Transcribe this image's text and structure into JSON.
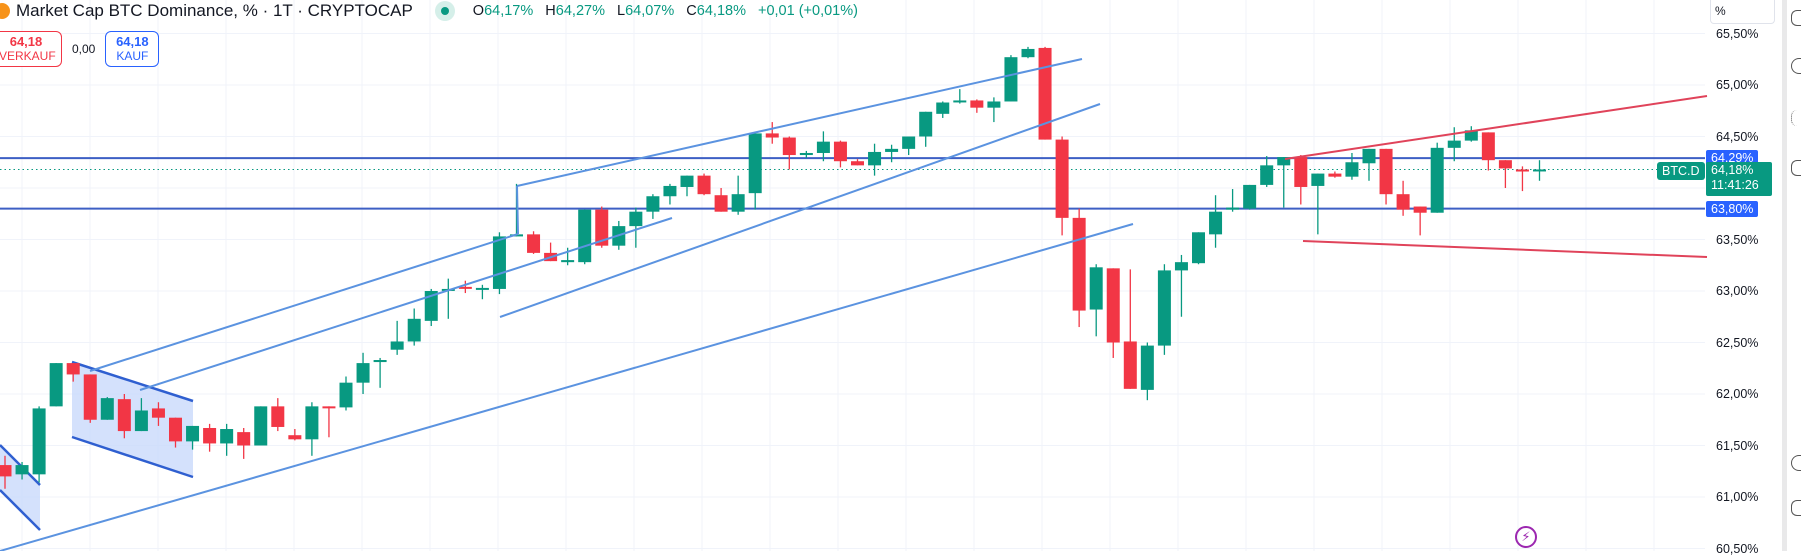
{
  "header": {
    "title": "Market Cap BTC Dominance, % · 1T · CRYPTOCAP",
    "coin_icon": "bitcoin-icon",
    "status_icon": "market-open-dot-icon",
    "ohlc": {
      "o_label": "O",
      "o": "64,17%",
      "h_label": "H",
      "h": "64,27%",
      "l_label": "L",
      "l": "64,07%",
      "c_label": "C",
      "c": "64,18%",
      "change": "+0,01 (+0,01%)"
    }
  },
  "trade": {
    "sell_price": "64,18",
    "sell_label": "VERKAUF",
    "spread": "0,00",
    "buy_price": "64,18",
    "buy_label": "KAUF"
  },
  "axis": {
    "unit": "%",
    "labels": [
      "65,50%",
      "65,00%",
      "64,50%",
      "63,50%",
      "63,00%",
      "62,50%",
      "62,00%",
      "61,50%",
      "61,00%",
      "60,50%"
    ],
    "level_tags": [
      {
        "text": "64,29%",
        "color": "#2962ff",
        "value": 64.29
      },
      {
        "text": "63,80%",
        "color": "#2962ff",
        "value": 63.8
      }
    ],
    "current": {
      "price": "64,18%",
      "countdown": "11:41:26",
      "symbol": "BTC.D",
      "color": "#089981"
    }
  },
  "colors": {
    "up": "#089981",
    "down": "#f23645",
    "level_line": "#3d5fc4",
    "channel_line": "#5b93e0",
    "red_trend": "#e0435a",
    "flag_fill": "#c9d9fb",
    "grid": "#f0f3fa"
  },
  "bottom_icon": "lightning-icon",
  "chart_data": {
    "type": "candlestick",
    "title": "Market Cap BTC Dominance, % · 1T · CRYPTOCAP",
    "ylabel": "%",
    "ylim": [
      60.45,
      65.82
    ],
    "yticks": [
      60.5,
      61.0,
      61.5,
      62.0,
      62.5,
      63.0,
      63.5,
      64.0,
      64.5,
      65.0,
      65.5
    ],
    "horizontal_levels": [
      64.29,
      63.8
    ],
    "last_price": 64.18,
    "candles": [
      {
        "o": 61.31,
        "h": 61.4,
        "l": 61.08,
        "c": 61.2
      },
      {
        "o": 61.22,
        "h": 61.34,
        "l": 61.17,
        "c": 61.31
      },
      {
        "o": 61.22,
        "h": 61.88,
        "l": 61.14,
        "c": 61.86
      },
      {
        "o": 61.88,
        "h": 62.3,
        "l": 61.88,
        "c": 62.3
      },
      {
        "o": 62.3,
        "h": 62.3,
        "l": 62.12,
        "c": 62.19
      },
      {
        "o": 62.19,
        "h": 62.19,
        "l": 61.72,
        "c": 61.75
      },
      {
        "o": 61.75,
        "h": 61.97,
        "l": 61.75,
        "c": 61.96
      },
      {
        "o": 61.95,
        "h": 62.0,
        "l": 61.57,
        "c": 61.64
      },
      {
        "o": 61.64,
        "h": 61.96,
        "l": 61.64,
        "c": 61.84
      },
      {
        "o": 61.86,
        "h": 61.92,
        "l": 61.69,
        "c": 61.77
      },
      {
        "o": 61.77,
        "h": 61.77,
        "l": 61.48,
        "c": 61.54
      },
      {
        "o": 61.54,
        "h": 61.69,
        "l": 61.46,
        "c": 61.69
      },
      {
        "o": 61.67,
        "h": 61.71,
        "l": 61.44,
        "c": 61.52
      },
      {
        "o": 61.52,
        "h": 61.71,
        "l": 61.4,
        "c": 61.66
      },
      {
        "o": 61.63,
        "h": 61.67,
        "l": 61.37,
        "c": 61.5
      },
      {
        "o": 61.5,
        "h": 61.88,
        "l": 61.5,
        "c": 61.88
      },
      {
        "o": 61.88,
        "h": 61.96,
        "l": 61.64,
        "c": 61.68
      },
      {
        "o": 61.6,
        "h": 61.66,
        "l": 61.55,
        "c": 61.56
      },
      {
        "o": 61.56,
        "h": 61.92,
        "l": 61.4,
        "c": 61.88
      },
      {
        "o": 61.88,
        "h": 61.88,
        "l": 61.58,
        "c": 61.87
      },
      {
        "o": 61.87,
        "h": 62.17,
        "l": 61.84,
        "c": 62.11
      },
      {
        "o": 62.11,
        "h": 62.4,
        "l": 62.0,
        "c": 62.3
      },
      {
        "o": 62.31,
        "h": 62.35,
        "l": 62.06,
        "c": 62.33
      },
      {
        "o": 62.43,
        "h": 62.71,
        "l": 62.38,
        "c": 62.51
      },
      {
        "o": 62.51,
        "h": 62.83,
        "l": 62.47,
        "c": 62.73
      },
      {
        "o": 62.71,
        "h": 63.02,
        "l": 62.66,
        "c": 63.0
      },
      {
        "o": 63.01,
        "h": 63.12,
        "l": 62.73,
        "c": 63.02
      },
      {
        "o": 63.04,
        "h": 63.1,
        "l": 62.98,
        "c": 63.03
      },
      {
        "o": 63.02,
        "h": 63.06,
        "l": 62.92,
        "c": 63.03
      },
      {
        "o": 63.02,
        "h": 63.57,
        "l": 62.97,
        "c": 63.53
      },
      {
        "o": 63.53,
        "h": 64.04,
        "l": 63.53,
        "c": 63.55
      },
      {
        "o": 63.55,
        "h": 63.58,
        "l": 63.36,
        "c": 63.37
      },
      {
        "o": 63.37,
        "h": 63.47,
        "l": 63.32,
        "c": 63.29
      },
      {
        "o": 63.28,
        "h": 63.42,
        "l": 63.25,
        "c": 63.3
      },
      {
        "o": 63.28,
        "h": 63.63,
        "l": 63.26,
        "c": 63.79
      },
      {
        "o": 63.79,
        "h": 63.82,
        "l": 63.42,
        "c": 63.44
      },
      {
        "o": 63.44,
        "h": 63.68,
        "l": 63.4,
        "c": 63.63
      },
      {
        "o": 63.63,
        "h": 63.81,
        "l": 63.42,
        "c": 63.77
      },
      {
        "o": 63.77,
        "h": 63.94,
        "l": 63.7,
        "c": 63.92
      },
      {
        "o": 63.92,
        "h": 64.04,
        "l": 63.84,
        "c": 64.02
      },
      {
        "o": 64.01,
        "h": 64.1,
        "l": 63.92,
        "c": 64.12
      },
      {
        "o": 64.12,
        "h": 64.14,
        "l": 63.93,
        "c": 63.94
      },
      {
        "o": 63.93,
        "h": 64.0,
        "l": 63.86,
        "c": 63.77
      },
      {
        "o": 63.77,
        "h": 64.12,
        "l": 63.74,
        "c": 63.94
      },
      {
        "o": 63.95,
        "h": 64.39,
        "l": 63.79,
        "c": 64.53
      },
      {
        "o": 64.53,
        "h": 64.64,
        "l": 64.43,
        "c": 64.49
      },
      {
        "o": 64.49,
        "h": 64.5,
        "l": 64.18,
        "c": 64.32
      },
      {
        "o": 64.32,
        "h": 64.36,
        "l": 64.29,
        "c": 64.34
      },
      {
        "o": 64.34,
        "h": 64.55,
        "l": 64.26,
        "c": 64.45
      },
      {
        "o": 64.45,
        "h": 64.46,
        "l": 64.2,
        "c": 64.26
      },
      {
        "o": 64.26,
        "h": 64.28,
        "l": 64.22,
        "c": 64.22
      },
      {
        "o": 64.22,
        "h": 64.43,
        "l": 64.12,
        "c": 64.35
      },
      {
        "o": 64.35,
        "h": 64.42,
        "l": 64.25,
        "c": 64.38
      },
      {
        "o": 64.38,
        "h": 64.49,
        "l": 64.32,
        "c": 64.5
      },
      {
        "o": 64.5,
        "h": 64.6,
        "l": 64.4,
        "c": 64.74
      },
      {
        "o": 64.72,
        "h": 64.84,
        "l": 64.68,
        "c": 64.83
      },
      {
        "o": 64.84,
        "h": 64.96,
        "l": 64.82,
        "c": 64.85
      },
      {
        "o": 64.85,
        "h": 64.86,
        "l": 64.73,
        "c": 64.78
      },
      {
        "o": 64.78,
        "h": 64.88,
        "l": 64.64,
        "c": 64.84
      },
      {
        "o": 64.84,
        "h": 65.29,
        "l": 64.84,
        "c": 65.27
      },
      {
        "o": 65.27,
        "h": 65.37,
        "l": 65.26,
        "c": 65.35
      },
      {
        "o": 65.36,
        "h": 65.37,
        "l": 64.69,
        "c": 64.47
      },
      {
        "o": 64.47,
        "h": 64.5,
        "l": 63.54,
        "c": 63.71
      },
      {
        "o": 63.71,
        "h": 63.8,
        "l": 62.65,
        "c": 62.81
      },
      {
        "o": 62.82,
        "h": 63.26,
        "l": 62.56,
        "c": 63.23
      },
      {
        "o": 63.22,
        "h": 63.2,
        "l": 62.35,
        "c": 62.5
      },
      {
        "o": 62.51,
        "h": 63.21,
        "l": 62.24,
        "c": 62.05
      },
      {
        "o": 62.04,
        "h": 62.5,
        "l": 61.94,
        "c": 62.47
      },
      {
        "o": 62.47,
        "h": 63.26,
        "l": 62.38,
        "c": 63.2
      },
      {
        "o": 63.2,
        "h": 63.35,
        "l": 62.75,
        "c": 63.28
      },
      {
        "o": 63.27,
        "h": 63.57,
        "l": 63.26,
        "c": 63.57
      },
      {
        "o": 63.55,
        "h": 63.93,
        "l": 63.42,
        "c": 63.77
      },
      {
        "o": 63.79,
        "h": 63.99,
        "l": 63.77,
        "c": 63.81
      },
      {
        "o": 63.8,
        "h": 64.03,
        "l": 63.79,
        "c": 64.03
      },
      {
        "o": 64.03,
        "h": 64.31,
        "l": 64.01,
        "c": 64.22
      },
      {
        "o": 64.22,
        "h": 64.3,
        "l": 63.81,
        "c": 64.3
      },
      {
        "o": 64.3,
        "h": 64.32,
        "l": 63.84,
        "c": 64.01
      },
      {
        "o": 64.02,
        "h": 64.1,
        "l": 63.55,
        "c": 64.14
      },
      {
        "o": 64.14,
        "h": 64.16,
        "l": 64.1,
        "c": 64.11
      },
      {
        "o": 64.11,
        "h": 64.34,
        "l": 64.08,
        "c": 64.25
      },
      {
        "o": 64.24,
        "h": 64.37,
        "l": 64.07,
        "c": 64.38
      },
      {
        "o": 64.38,
        "h": 64.38,
        "l": 63.84,
        "c": 63.94
      },
      {
        "o": 63.94,
        "h": 64.07,
        "l": 63.73,
        "c": 63.79
      },
      {
        "o": 63.82,
        "h": 63.82,
        "l": 63.54,
        "c": 63.76
      },
      {
        "o": 63.76,
        "h": 64.44,
        "l": 63.76,
        "c": 64.39
      },
      {
        "o": 64.39,
        "h": 64.59,
        "l": 64.26,
        "c": 64.46
      },
      {
        "o": 64.46,
        "h": 64.6,
        "l": 64.45,
        "c": 64.56
      },
      {
        "o": 64.54,
        "h": 64.5,
        "l": 64.17,
        "c": 64.27
      },
      {
        "o": 64.27,
        "h": 64.27,
        "l": 64.0,
        "c": 64.19
      },
      {
        "o": 64.18,
        "h": 64.21,
        "l": 63.97,
        "c": 64.16
      },
      {
        "o": 64.17,
        "h": 64.27,
        "l": 64.07,
        "c": 64.18
      }
    ],
    "drawings": [
      {
        "kind": "flag",
        "points": [
          [
            0,
            445
          ],
          [
            40,
            485
          ],
          [
            40,
            530
          ],
          [
            0,
            490
          ]
        ]
      },
      {
        "kind": "flag",
        "points": [
          [
            72,
            362
          ],
          [
            193,
            401
          ],
          [
            193,
            477
          ],
          [
            72,
            437
          ]
        ]
      },
      {
        "kind": "line",
        "color": "channel",
        "points": [
          [
            90,
            371
          ],
          [
            518,
            234
          ]
        ]
      },
      {
        "kind": "line",
        "color": "channel",
        "points": [
          [
            140,
            390
          ],
          [
            672,
            218
          ]
        ]
      },
      {
        "kind": "line",
        "color": "channel",
        "points": [
          [
            0,
            551
          ],
          [
            1133,
            224
          ]
        ]
      },
      {
        "kind": "line",
        "color": "channel",
        "points": [
          [
            517,
            186
          ],
          [
            518,
            234
          ]
        ]
      },
      {
        "kind": "line",
        "color": "channel",
        "points": [
          [
            517,
            186
          ],
          [
            1082,
            59
          ]
        ]
      },
      {
        "kind": "line",
        "color": "channel",
        "points": [
          [
            500,
            317
          ],
          [
            1100,
            104
          ]
        ]
      },
      {
        "kind": "line",
        "color": "red",
        "points": [
          [
            1285,
            159
          ],
          [
            1707,
            96
          ]
        ]
      },
      {
        "kind": "line",
        "color": "red",
        "points": [
          [
            1303,
            241
          ],
          [
            1707,
            257
          ]
        ]
      }
    ]
  }
}
